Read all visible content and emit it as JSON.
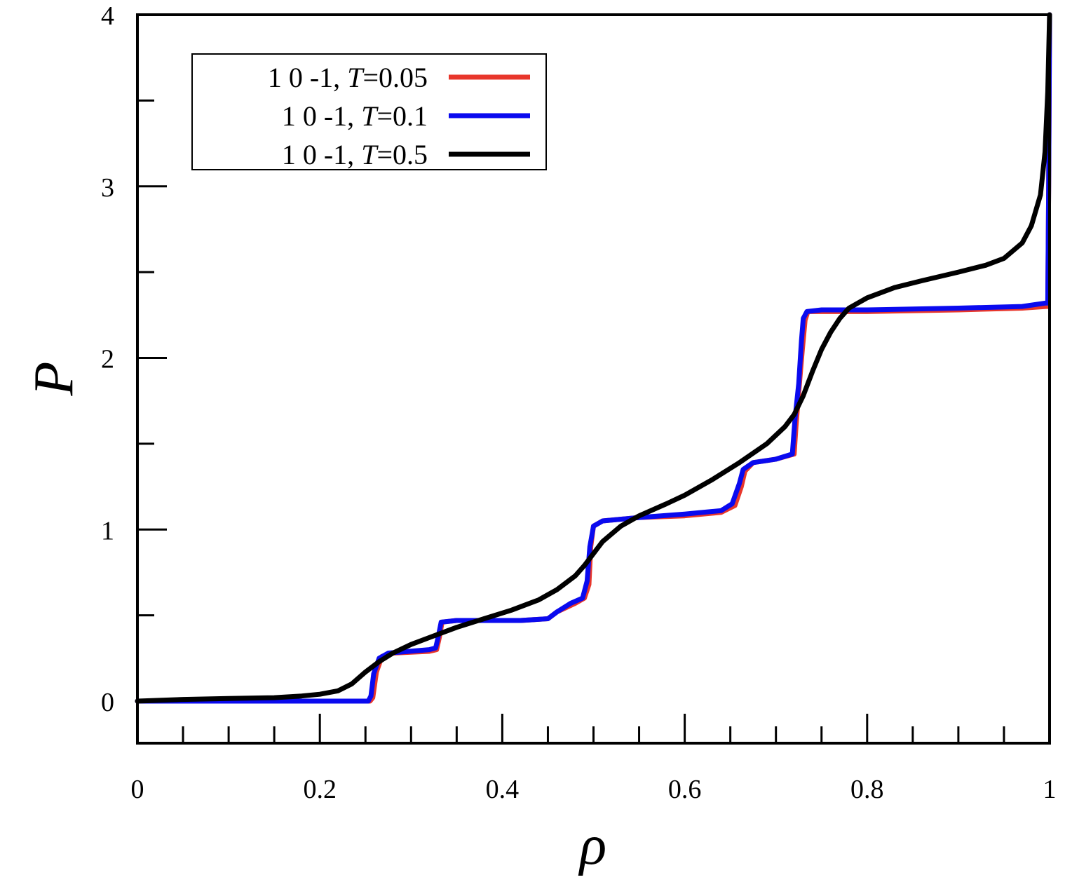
{
  "chart_data": {
    "type": "line",
    "title": "",
    "xlabel": "ρ",
    "ylabel": "P",
    "xlim": [
      0,
      1
    ],
    "ylim": [
      -0.25,
      4
    ],
    "xticks": [
      0,
      0.2,
      0.4,
      0.6,
      0.8,
      1
    ],
    "xtick_labels": [
      "0",
      "0.2",
      "0.4",
      "0.6",
      "0.8",
      "1"
    ],
    "yticks": [
      0,
      1,
      2,
      3,
      4
    ],
    "ytick_labels": [
      "0",
      "1",
      "2",
      "3",
      "4"
    ],
    "x_minor_step": 0.05,
    "y_minor_step": 0.5,
    "grid": false,
    "legend_position": "top-left",
    "series": [
      {
        "name": "1 0 -1, T=0.05",
        "label_prefix": "1 0 -1, ",
        "label_var": "T",
        "label_value": "=0.05",
        "color": "#e8362b",
        "points": [
          [
            0,
            0
          ],
          [
            0.2,
            0
          ],
          [
            0.255,
            0
          ],
          [
            0.258,
            0.02
          ],
          [
            0.262,
            0.17
          ],
          [
            0.268,
            0.26
          ],
          [
            0.28,
            0.28
          ],
          [
            0.32,
            0.29
          ],
          [
            0.328,
            0.3
          ],
          [
            0.331,
            0.37
          ],
          [
            0.334,
            0.46
          ],
          [
            0.35,
            0.47
          ],
          [
            0.42,
            0.47
          ],
          [
            0.45,
            0.48
          ],
          [
            0.46,
            0.52
          ],
          [
            0.48,
            0.57
          ],
          [
            0.49,
            0.6
          ],
          [
            0.495,
            0.68
          ],
          [
            0.497,
            0.9
          ],
          [
            0.5,
            1.02
          ],
          [
            0.51,
            1.05
          ],
          [
            0.55,
            1.07
          ],
          [
            0.6,
            1.08
          ],
          [
            0.64,
            1.1
          ],
          [
            0.655,
            1.14
          ],
          [
            0.662,
            1.25
          ],
          [
            0.666,
            1.34
          ],
          [
            0.675,
            1.39
          ],
          [
            0.7,
            1.41
          ],
          [
            0.72,
            1.44
          ],
          [
            0.722,
            1.6
          ],
          [
            0.725,
            1.8
          ],
          [
            0.729,
            2.05
          ],
          [
            0.732,
            2.22
          ],
          [
            0.735,
            2.27
          ],
          [
            0.75,
            2.27
          ],
          [
            0.8,
            2.27
          ],
          [
            0.9,
            2.28
          ],
          [
            0.97,
            2.29
          ],
          [
            0.996,
            2.3
          ],
          [
            0.998,
            2.3
          ],
          [
            0.999,
            3.0
          ],
          [
            1.0,
            4.0
          ]
        ]
      },
      {
        "name": "1 0 -1, T=0.1",
        "label_prefix": "1 0 -1, ",
        "label_var": "T",
        "label_value": "=0.1",
        "color": "#0a0aef",
        "points": [
          [
            0,
            0
          ],
          [
            0.2,
            0
          ],
          [
            0.253,
            0
          ],
          [
            0.256,
            0.03
          ],
          [
            0.259,
            0.16
          ],
          [
            0.265,
            0.25
          ],
          [
            0.275,
            0.28
          ],
          [
            0.32,
            0.3
          ],
          [
            0.327,
            0.31
          ],
          [
            0.33,
            0.38
          ],
          [
            0.333,
            0.46
          ],
          [
            0.35,
            0.47
          ],
          [
            0.42,
            0.47
          ],
          [
            0.45,
            0.48
          ],
          [
            0.46,
            0.52
          ],
          [
            0.475,
            0.57
          ],
          [
            0.488,
            0.6
          ],
          [
            0.493,
            0.7
          ],
          [
            0.496,
            0.9
          ],
          [
            0.5,
            1.02
          ],
          [
            0.51,
            1.05
          ],
          [
            0.55,
            1.07
          ],
          [
            0.6,
            1.09
          ],
          [
            0.64,
            1.11
          ],
          [
            0.652,
            1.15
          ],
          [
            0.66,
            1.27
          ],
          [
            0.664,
            1.35
          ],
          [
            0.675,
            1.39
          ],
          [
            0.7,
            1.41
          ],
          [
            0.718,
            1.44
          ],
          [
            0.721,
            1.65
          ],
          [
            0.725,
            1.85
          ],
          [
            0.728,
            2.1
          ],
          [
            0.73,
            2.23
          ],
          [
            0.734,
            2.27
          ],
          [
            0.75,
            2.28
          ],
          [
            0.8,
            2.28
          ],
          [
            0.9,
            2.29
          ],
          [
            0.97,
            2.3
          ],
          [
            0.996,
            2.32
          ],
          [
            0.998,
            2.32
          ],
          [
            0.999,
            3.0
          ],
          [
            1.0,
            4.0
          ]
        ]
      },
      {
        "name": "1 0 -1, T=0.5",
        "label_prefix": "1 0 -1, ",
        "label_var": "T",
        "label_value": "=0.5",
        "color": "#000000",
        "points": [
          [
            0,
            0
          ],
          [
            0.05,
            0.01
          ],
          [
            0.1,
            0.015
          ],
          [
            0.15,
            0.02
          ],
          [
            0.18,
            0.03
          ],
          [
            0.2,
            0.04
          ],
          [
            0.22,
            0.06
          ],
          [
            0.235,
            0.1
          ],
          [
            0.25,
            0.17
          ],
          [
            0.265,
            0.23
          ],
          [
            0.28,
            0.28
          ],
          [
            0.3,
            0.33
          ],
          [
            0.32,
            0.37
          ],
          [
            0.35,
            0.43
          ],
          [
            0.38,
            0.48
          ],
          [
            0.41,
            0.53
          ],
          [
            0.44,
            0.59
          ],
          [
            0.46,
            0.65
          ],
          [
            0.48,
            0.73
          ],
          [
            0.49,
            0.79
          ],
          [
            0.5,
            0.86
          ],
          [
            0.51,
            0.93
          ],
          [
            0.53,
            1.02
          ],
          [
            0.55,
            1.08
          ],
          [
            0.58,
            1.15
          ],
          [
            0.6,
            1.2
          ],
          [
            0.63,
            1.29
          ],
          [
            0.66,
            1.39
          ],
          [
            0.69,
            1.5
          ],
          [
            0.71,
            1.6
          ],
          [
            0.72,
            1.67
          ],
          [
            0.73,
            1.78
          ],
          [
            0.74,
            1.92
          ],
          [
            0.75,
            2.05
          ],
          [
            0.76,
            2.15
          ],
          [
            0.77,
            2.23
          ],
          [
            0.78,
            2.29
          ],
          [
            0.8,
            2.35
          ],
          [
            0.83,
            2.41
          ],
          [
            0.86,
            2.45
          ],
          [
            0.9,
            2.5
          ],
          [
            0.93,
            2.54
          ],
          [
            0.95,
            2.58
          ],
          [
            0.97,
            2.67
          ],
          [
            0.98,
            2.77
          ],
          [
            0.99,
            2.95
          ],
          [
            0.995,
            3.2
          ],
          [
            0.998,
            3.55
          ],
          [
            1.0,
            4.0
          ]
        ]
      }
    ]
  }
}
